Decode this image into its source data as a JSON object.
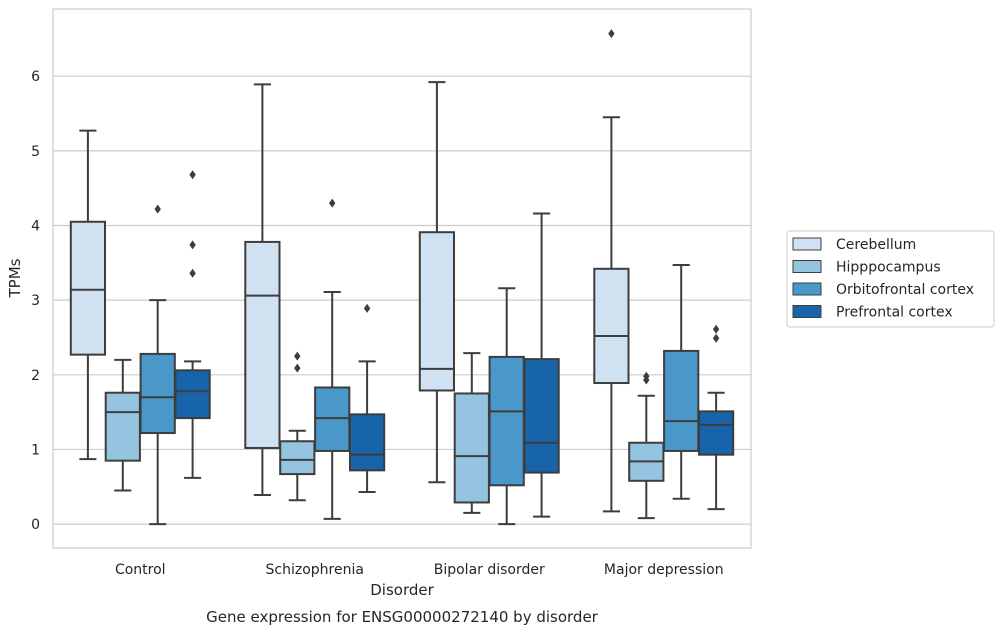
{
  "chart_data": {
    "type": "boxplot",
    "caption": "Gene expression for ENSG00000272140 by disorder",
    "xlabel": "Disorder",
    "ylabel": "TPMs",
    "ylim": [
      -0.32,
      6.9
    ],
    "yticks": [
      0,
      1,
      2,
      3,
      4,
      5,
      6
    ],
    "grid": true,
    "legend_position": "center-right",
    "categories": [
      "Control",
      "Schizophrenia",
      "Bipolar disorder",
      "Major depression"
    ],
    "series": [
      {
        "name": "Cerebellum",
        "color": "#d0e1f2",
        "boxes": [
          {
            "whisker_low": 0.87,
            "q1": 2.27,
            "median": 3.14,
            "q3": 4.05,
            "whisker_high": 5.27,
            "outliers": []
          },
          {
            "whisker_low": 0.39,
            "q1": 1.02,
            "median": 3.06,
            "q3": 3.78,
            "whisker_high": 5.89,
            "outliers": []
          },
          {
            "whisker_low": 0.56,
            "q1": 1.79,
            "median": 2.08,
            "q3": 3.91,
            "whisker_high": 5.92,
            "outliers": []
          },
          {
            "whisker_low": 0.17,
            "q1": 1.89,
            "median": 2.52,
            "q3": 3.42,
            "whisker_high": 5.45,
            "outliers": [
              6.57
            ]
          }
        ]
      },
      {
        "name": "Hipppocampus",
        "color": "#94c4df",
        "boxes": [
          {
            "whisker_low": 0.45,
            "q1": 0.85,
            "median": 1.5,
            "q3": 1.76,
            "whisker_high": 2.2,
            "outliers": []
          },
          {
            "whisker_low": 0.32,
            "q1": 0.67,
            "median": 0.86,
            "q3": 1.11,
            "whisker_high": 1.25,
            "outliers": [
              2.09,
              2.25
            ]
          },
          {
            "whisker_low": 0.15,
            "q1": 0.29,
            "median": 0.91,
            "q3": 1.75,
            "whisker_high": 2.29,
            "outliers": []
          },
          {
            "whisker_low": 0.08,
            "q1": 0.58,
            "median": 0.84,
            "q3": 1.09,
            "whisker_high": 1.72,
            "outliers": [
              1.93,
              1.98
            ]
          }
        ]
      },
      {
        "name": "Orbitofrontal cortex",
        "color": "#4a98c9",
        "boxes": [
          {
            "whisker_low": 0.0,
            "q1": 1.22,
            "median": 1.7,
            "q3": 2.28,
            "whisker_high": 3.0,
            "outliers": [
              4.22
            ]
          },
          {
            "whisker_low": 0.07,
            "q1": 0.98,
            "median": 1.42,
            "q3": 1.83,
            "whisker_high": 3.11,
            "outliers": [
              4.3
            ]
          },
          {
            "whisker_low": 0.0,
            "q1": 0.52,
            "median": 1.51,
            "q3": 2.24,
            "whisker_high": 3.16,
            "outliers": []
          },
          {
            "whisker_low": 0.34,
            "q1": 0.98,
            "median": 1.38,
            "q3": 2.32,
            "whisker_high": 3.47,
            "outliers": []
          }
        ]
      },
      {
        "name": "Prefrontal cortex",
        "color": "#1764ab",
        "boxes": [
          {
            "whisker_low": 0.62,
            "q1": 1.42,
            "median": 1.78,
            "q3": 2.06,
            "whisker_high": 2.18,
            "outliers": [
              3.36,
              3.74,
              4.68
            ]
          },
          {
            "whisker_low": 0.43,
            "q1": 0.72,
            "median": 0.93,
            "q3": 1.47,
            "whisker_high": 2.18,
            "outliers": [
              2.89
            ]
          },
          {
            "whisker_low": 0.1,
            "q1": 0.69,
            "median": 1.09,
            "q3": 2.21,
            "whisker_high": 4.16,
            "outliers": []
          },
          {
            "whisker_low": 0.2,
            "q1": 0.93,
            "median": 1.33,
            "q3": 1.51,
            "whisker_high": 1.76,
            "outliers": [
              2.49,
              2.61
            ]
          }
        ]
      }
    ]
  }
}
